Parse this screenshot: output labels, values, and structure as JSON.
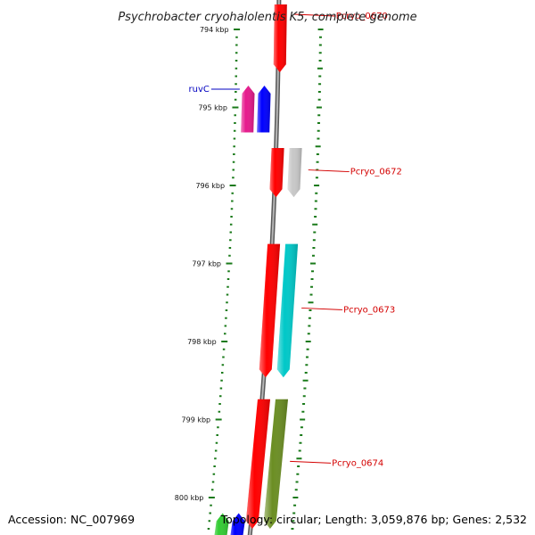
{
  "title": "Psychrobacter cryohalolentis K5, complete genome",
  "accession": "Accession: NC_007969",
  "topology": "Topology: circular; Length: 3,059,876 bp; Genes: 2,532",
  "colors": {
    "backbone": "#8a8a8a",
    "tick": "#1a7a1a",
    "gene_label_red": "#d40000",
    "gene_label_blue": "#0000c0",
    "leader_red": "#d40000",
    "leader_blue": "#0000c0"
  },
  "ruler": {
    "unit": "kbp",
    "labels": [
      "794 kbp",
      "795 kbp",
      "796 kbp",
      "797 kbp",
      "798 kbp",
      "799 kbp",
      "800 kbp"
    ],
    "positions_kbp": [
      794,
      795,
      796,
      797,
      798,
      799,
      800
    ],
    "minor_ticks_per_kbp": 10
  },
  "genes": [
    {
      "name": "Pcryo_0670",
      "start_kbp": 793.68,
      "end_kbp": 794.55,
      "strand": "minus",
      "track": "inner",
      "color": "#ff0000",
      "labeled": true
    },
    {
      "name": "",
      "start_kbp": 794.72,
      "end_kbp": 795.32,
      "strand": "plus",
      "track": "outer2",
      "color": "#e6198c",
      "labeled": false
    },
    {
      "name": "ruvC",
      "start_kbp": 794.72,
      "end_kbp": 795.32,
      "strand": "plus",
      "track": "outer1",
      "color": "#0000ff",
      "labeled": true
    },
    {
      "name": "",
      "start_kbp": 795.52,
      "end_kbp": 796.15,
      "strand": "minus",
      "track": "inner",
      "color": "#ff0000",
      "labeled": false
    },
    {
      "name": "Pcryo_0672",
      "start_kbp": 795.52,
      "end_kbp": 796.15,
      "strand": "minus",
      "track": "inner2",
      "color": "#c8c8c8",
      "labeled": true
    },
    {
      "name": "",
      "start_kbp": 796.75,
      "end_kbp": 798.46,
      "strand": "minus",
      "track": "inner",
      "color": "#ff0000",
      "labeled": false
    },
    {
      "name": "Pcryo_0673",
      "start_kbp": 796.75,
      "end_kbp": 798.46,
      "strand": "minus",
      "track": "inner2",
      "color": "#00c8c8",
      "labeled": true
    },
    {
      "name": "",
      "start_kbp": 798.74,
      "end_kbp": 800.4,
      "strand": "minus",
      "track": "inner",
      "color": "#ff0000",
      "labeled": false
    },
    {
      "name": "Pcryo_0674",
      "start_kbp": 798.74,
      "end_kbp": 800.4,
      "strand": "minus",
      "track": "inner2",
      "color": "#6b8e23",
      "labeled": true
    },
    {
      "name": "",
      "start_kbp": 800.2,
      "end_kbp": 800.6,
      "strand": "plus",
      "track": "outer2",
      "color": "#33cc33",
      "labeled": false
    },
    {
      "name": "",
      "start_kbp": 800.2,
      "end_kbp": 800.6,
      "strand": "plus",
      "track": "outer1",
      "color": "#0000ff",
      "labeled": false
    }
  ]
}
